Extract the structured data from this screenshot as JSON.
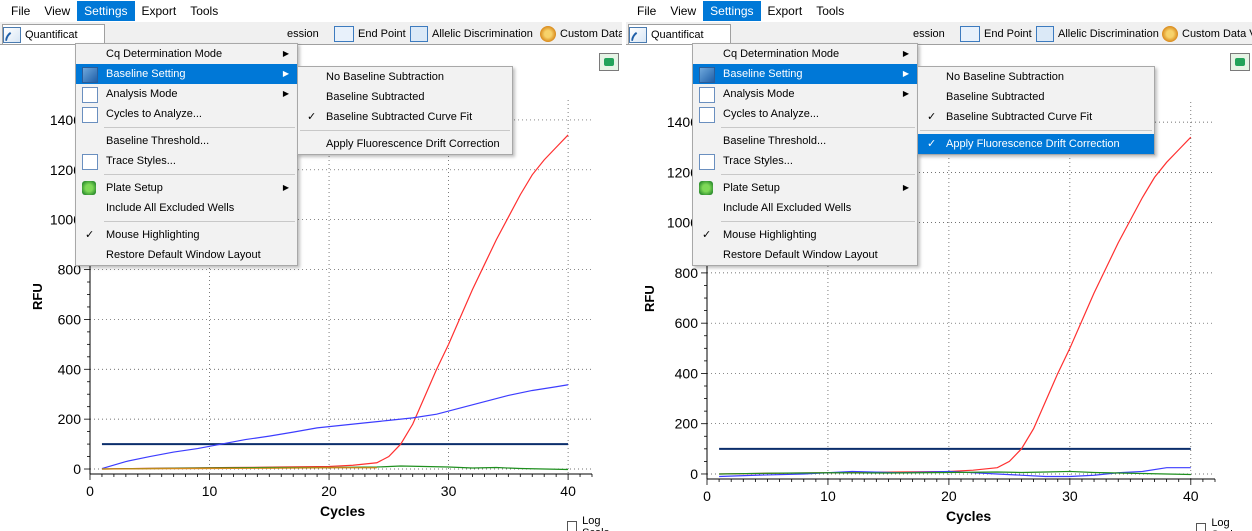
{
  "menubar": {
    "items": [
      "File",
      "View",
      "Settings",
      "Export",
      "Tools"
    ],
    "active": "Settings"
  },
  "tabs": {
    "left": [
      "Quantificat",
      "ession",
      "End Point",
      "Allelic Discrimination",
      "Custom Data"
    ],
    "right": [
      "Quantificat",
      "ession",
      "End Point",
      "Allelic Discrimination",
      "Custom Data V"
    ]
  },
  "settings_menu": {
    "items": [
      {
        "label": "Cq Determination Mode",
        "submenu": true,
        "icon": ""
      },
      {
        "label": "Baseline Setting",
        "submenu": true,
        "icon": "baseline-icon"
      },
      {
        "label": "Analysis Mode",
        "submenu": true,
        "icon": "analysis-icon"
      },
      {
        "label": "Cycles to Analyze...",
        "submenu": false,
        "icon": "cycles-icon"
      },
      {
        "label": "Baseline Threshold...",
        "submenu": false,
        "icon": ""
      },
      {
        "label": "Trace Styles...",
        "submenu": false,
        "icon": "trace-icon"
      },
      {
        "label": "Plate Setup",
        "submenu": true,
        "icon": "plate-icon"
      },
      {
        "label": "Include All Excluded Wells",
        "submenu": false,
        "icon": ""
      },
      {
        "label": "Mouse Highlighting",
        "submenu": false,
        "checked": true
      },
      {
        "label": "Restore Default Window Layout",
        "submenu": false
      }
    ]
  },
  "baseline_submenu": {
    "items": [
      "No Baseline Subtraction",
      "Baseline Subtracted",
      "Baseline Subtracted Curve Fit",
      "Apply Fluorescence Drift Correction"
    ],
    "left_checked": "Baseline Subtracted Curve Fit",
    "right_checked": [
      "Baseline Subtracted Curve Fit",
      "Apply Fluorescence Drift Correction"
    ],
    "right_highlighted": "Apply Fluorescence Drift Correction"
  },
  "log_scale_label": "Log Scale",
  "chart_data": [
    {
      "type": "line",
      "xlabel": "Cycles",
      "ylabel": "RFU",
      "xlim": [
        0,
        42
      ],
      "ylim": [
        -20,
        1480
      ],
      "xticks": [
        0,
        10,
        20,
        30,
        40
      ],
      "yticks": [
        0,
        200,
        400,
        600,
        800,
        1000,
        1200,
        1400
      ],
      "grid": true,
      "threshold": 100,
      "series": [
        {
          "color": "#ff3030",
          "x": [
            1,
            4,
            8,
            12,
            16,
            20,
            22,
            24,
            25,
            26,
            27,
            28,
            29,
            30,
            31,
            32,
            33,
            34,
            35,
            36,
            37,
            38,
            39,
            40
          ],
          "y": [
            0,
            2,
            4,
            6,
            8,
            10,
            15,
            25,
            50,
            100,
            180,
            290,
            400,
            500,
            610,
            720,
            820,
            920,
            1010,
            1100,
            1180,
            1240,
            1290,
            1340
          ]
        },
        {
          "color": "#3d3dff",
          "x": [
            1,
            3,
            5,
            7,
            9,
            11,
            13,
            15,
            17,
            19,
            21,
            23,
            25,
            27,
            29,
            31,
            33,
            35,
            37,
            39,
            40
          ],
          "y": [
            2,
            30,
            50,
            68,
            82,
            100,
            118,
            132,
            148,
            165,
            175,
            185,
            195,
            205,
            220,
            245,
            270,
            295,
            315,
            330,
            338
          ]
        },
        {
          "color": "#1e8f1e",
          "x": [
            1,
            5,
            10,
            15,
            20,
            24,
            26,
            28,
            30,
            32,
            34,
            36,
            38,
            40
          ],
          "y": [
            0,
            2,
            4,
            6,
            6,
            8,
            12,
            10,
            8,
            4,
            6,
            2,
            0,
            -2
          ]
        },
        {
          "color": "#d48a1a",
          "x": [
            1,
            5,
            10,
            15,
            20,
            24
          ],
          "y": [
            0,
            1,
            2,
            3,
            5,
            5
          ]
        }
      ]
    },
    {
      "type": "line",
      "xlabel": "Cycles",
      "ylabel": "RFU",
      "xlim": [
        0,
        42
      ],
      "ylim": [
        -20,
        1480
      ],
      "xticks": [
        0,
        10,
        20,
        30,
        40
      ],
      "yticks": [
        0,
        200,
        400,
        600,
        800,
        1000,
        1200,
        1400
      ],
      "grid": true,
      "threshold": 100,
      "series": [
        {
          "color": "#ff3030",
          "x": [
            1,
            4,
            8,
            12,
            16,
            20,
            22,
            24,
            25,
            26,
            27,
            28,
            29,
            30,
            31,
            32,
            33,
            34,
            35,
            36,
            37,
            38,
            39,
            40
          ],
          "y": [
            0,
            2,
            4,
            6,
            8,
            10,
            15,
            25,
            50,
            100,
            180,
            290,
            400,
            500,
            610,
            720,
            820,
            920,
            1010,
            1100,
            1180,
            1240,
            1290,
            1340
          ]
        },
        {
          "color": "#3d3dff",
          "x": [
            1,
            4,
            8,
            12,
            16,
            20,
            24,
            28,
            30,
            32,
            34,
            36,
            38,
            40
          ],
          "y": [
            -10,
            -5,
            0,
            10,
            5,
            10,
            0,
            -10,
            -10,
            -5,
            5,
            10,
            25,
            25
          ]
        },
        {
          "color": "#1e8f1e",
          "x": [
            1,
            5,
            10,
            15,
            20,
            24,
            26,
            28,
            30,
            32,
            34,
            36,
            38,
            40
          ],
          "y": [
            0,
            3,
            5,
            4,
            6,
            8,
            6,
            8,
            10,
            6,
            4,
            2,
            0,
            -2
          ]
        }
      ]
    }
  ]
}
